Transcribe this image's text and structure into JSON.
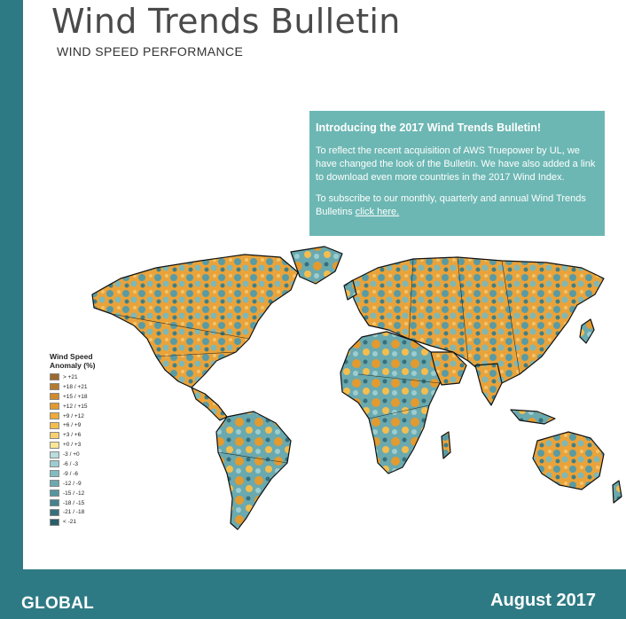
{
  "header": {
    "title": "Wind Trends Bulletin",
    "subtitle": "WIND SPEED PERFORMANCE"
  },
  "callout": {
    "heading": "Introducing the 2017 Wind Trends Bulletin!",
    "paragraph1": "To reflect the recent acquisition of AWS Truepower by UL, we have changed the look of the Bulletin.  We have also added a link to download even more countries in the 2017 Wind Index.",
    "paragraph2": "To subscribe to our monthly, quarterly and annual Wind Trends Bulletins ",
    "link": "click here."
  },
  "legend": {
    "title1": "Wind Speed",
    "title2": "Anomaly (%)",
    "items": [
      {
        "label": "> +21",
        "color": "#9c6a2e"
      },
      {
        "label": "+18 / +21",
        "color": "#b77b2f"
      },
      {
        "label": "+15 / +18",
        "color": "#d08a2c"
      },
      {
        "label": "+12 / +15",
        "color": "#e39a2f"
      },
      {
        "label": "+9 / +12",
        "color": "#eeaa3a"
      },
      {
        "label": "+6 / +9",
        "color": "#f4bd4e"
      },
      {
        "label": "+3 / +6",
        "color": "#f7d06f"
      },
      {
        "label": "+0 / +3",
        "color": "#f9e597"
      },
      {
        "label": "-3 / +0",
        "color": "#b9dcdc"
      },
      {
        "label": "-6 / -3",
        "color": "#9ccdd0"
      },
      {
        "label": "-9 / -6",
        "color": "#82bcc0"
      },
      {
        "label": "-12 / -9",
        "color": "#6aa9ae"
      },
      {
        "label": "-15 / -12",
        "color": "#56969d"
      },
      {
        "label": "-18 / -15",
        "color": "#45838c"
      },
      {
        "label": "-21 / -18",
        "color": "#36707c"
      },
      {
        "label": "< -21",
        "color": "#2a5e6a"
      }
    ]
  },
  "footer": {
    "region": "GLOBAL",
    "date": "August 2017"
  },
  "colors": {
    "frame": "#2e7a84",
    "callout_bg": "#6cb7b3",
    "map_warm": "#e9a33a",
    "map_cool": "#5a9ba3"
  }
}
